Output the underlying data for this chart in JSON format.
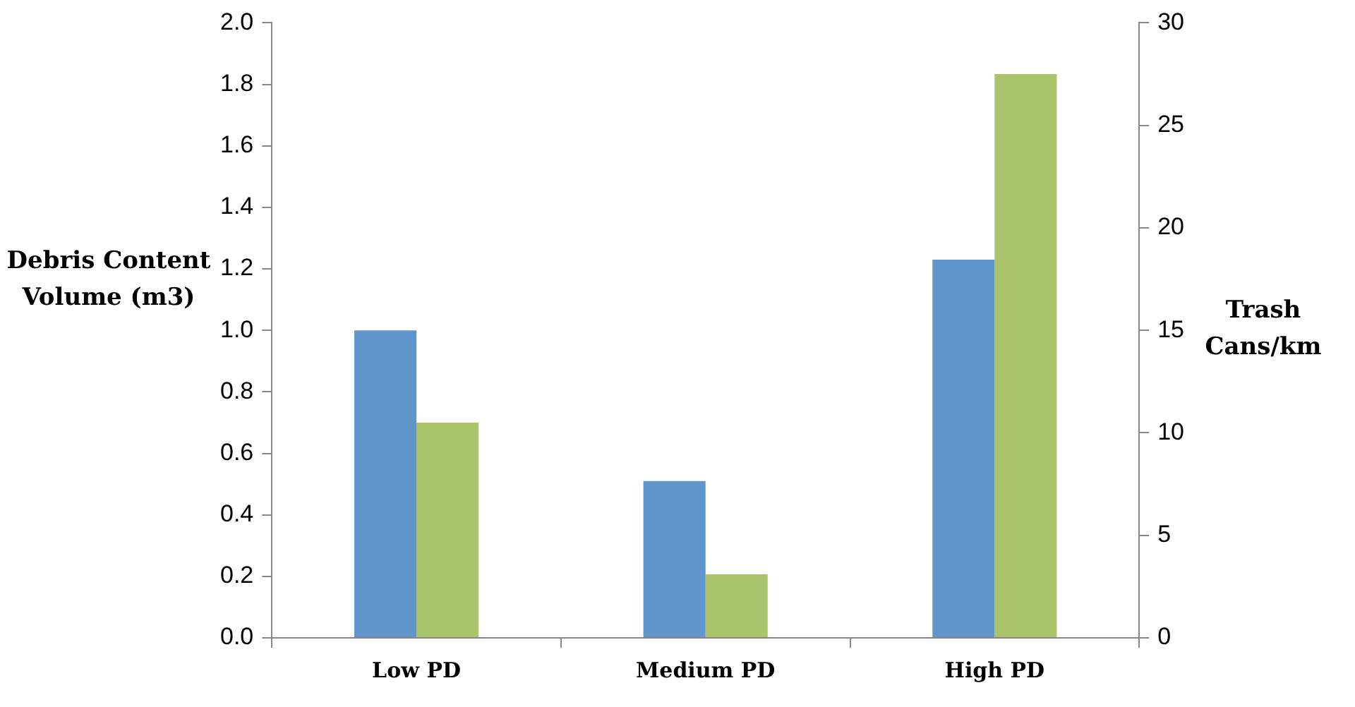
{
  "chart_data": {
    "type": "bar",
    "ylabel": "Debris Content Volume (m3)",
    "y2label": "Trash Cans/km",
    "categories": [
      "Low PD",
      "Medium PD",
      "High PD"
    ],
    "series": [
      {
        "color": "#6096cb",
        "values": [
          1.0,
          0.51,
          1.23
        ]
      },
      {
        "color": "#a9c46a",
        "values": [
          10.5,
          3.1,
          27.5
        ],
        "axis": "y2"
      }
    ],
    "ylim": [
      0,
      2
    ],
    "yticks": [
      {
        "value": 0,
        "label": "0.0"
      },
      {
        "value": 0.2,
        "label": "0.2"
      },
      {
        "value": 0.4,
        "label": "0.4"
      },
      {
        "value": 0.6,
        "label": "0.6"
      },
      {
        "value": 0.8,
        "label": "0.8"
      },
      {
        "value": 1,
        "label": "1.0"
      },
      {
        "value": 1.2,
        "label": "1.2"
      },
      {
        "value": 1.4,
        "label": "1.4"
      },
      {
        "value": 1.6,
        "label": "1.6"
      },
      {
        "value": 1.8,
        "label": "1.8"
      },
      {
        "value": 2,
        "label": "2.0"
      }
    ],
    "y2lim": [
      0,
      30
    ],
    "y2ticks": [
      0,
      5,
      10,
      15,
      20,
      25,
      30
    ],
    "grid": false,
    "legend": false
  }
}
